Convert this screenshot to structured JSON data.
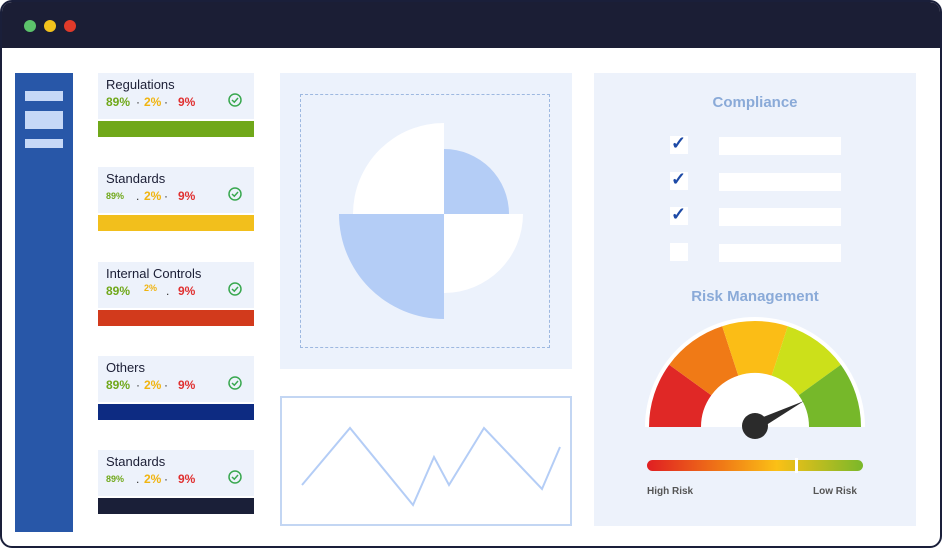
{
  "window": {
    "controls": [
      "close",
      "minimize",
      "maximize"
    ]
  },
  "colors": {
    "green": "#70a81a",
    "yellow": "#f0b410",
    "red": "#e03030",
    "navy": "#0d2b82",
    "dark": "#1a1f38",
    "accent_blue": "#2857a8"
  },
  "cards": [
    {
      "title": "Regulations",
      "p1": "89%",
      "p2": "2%",
      "p3": "9%",
      "bar_color": "#70a81a"
    },
    {
      "title": "Standards",
      "p1": "89%",
      "p2": "2%",
      "p3": "9%",
      "bar_color": "#f2bf1c"
    },
    {
      "title": "Internal Controls",
      "p1": "89%",
      "p2": "2%",
      "p3": "9%",
      "bar_color": "#d23a1c"
    },
    {
      "title": "Others",
      "p1": "89%",
      "p2": "2%",
      "p3": "9%",
      "bar_color": "#0d2b82"
    },
    {
      "title": "Standards",
      "p1": "89%",
      "p2": "2%",
      "p3": "9%",
      "bar_color": "#1a1f38"
    }
  ],
  "compliance": {
    "title": "Compliance",
    "items": [
      {
        "checked": true
      },
      {
        "checked": true
      },
      {
        "checked": true
      },
      {
        "checked": false
      }
    ]
  },
  "risk": {
    "title": "Risk Management",
    "high_label": "High Risk",
    "low_label": "Low Risk",
    "level": 0.8
  }
}
